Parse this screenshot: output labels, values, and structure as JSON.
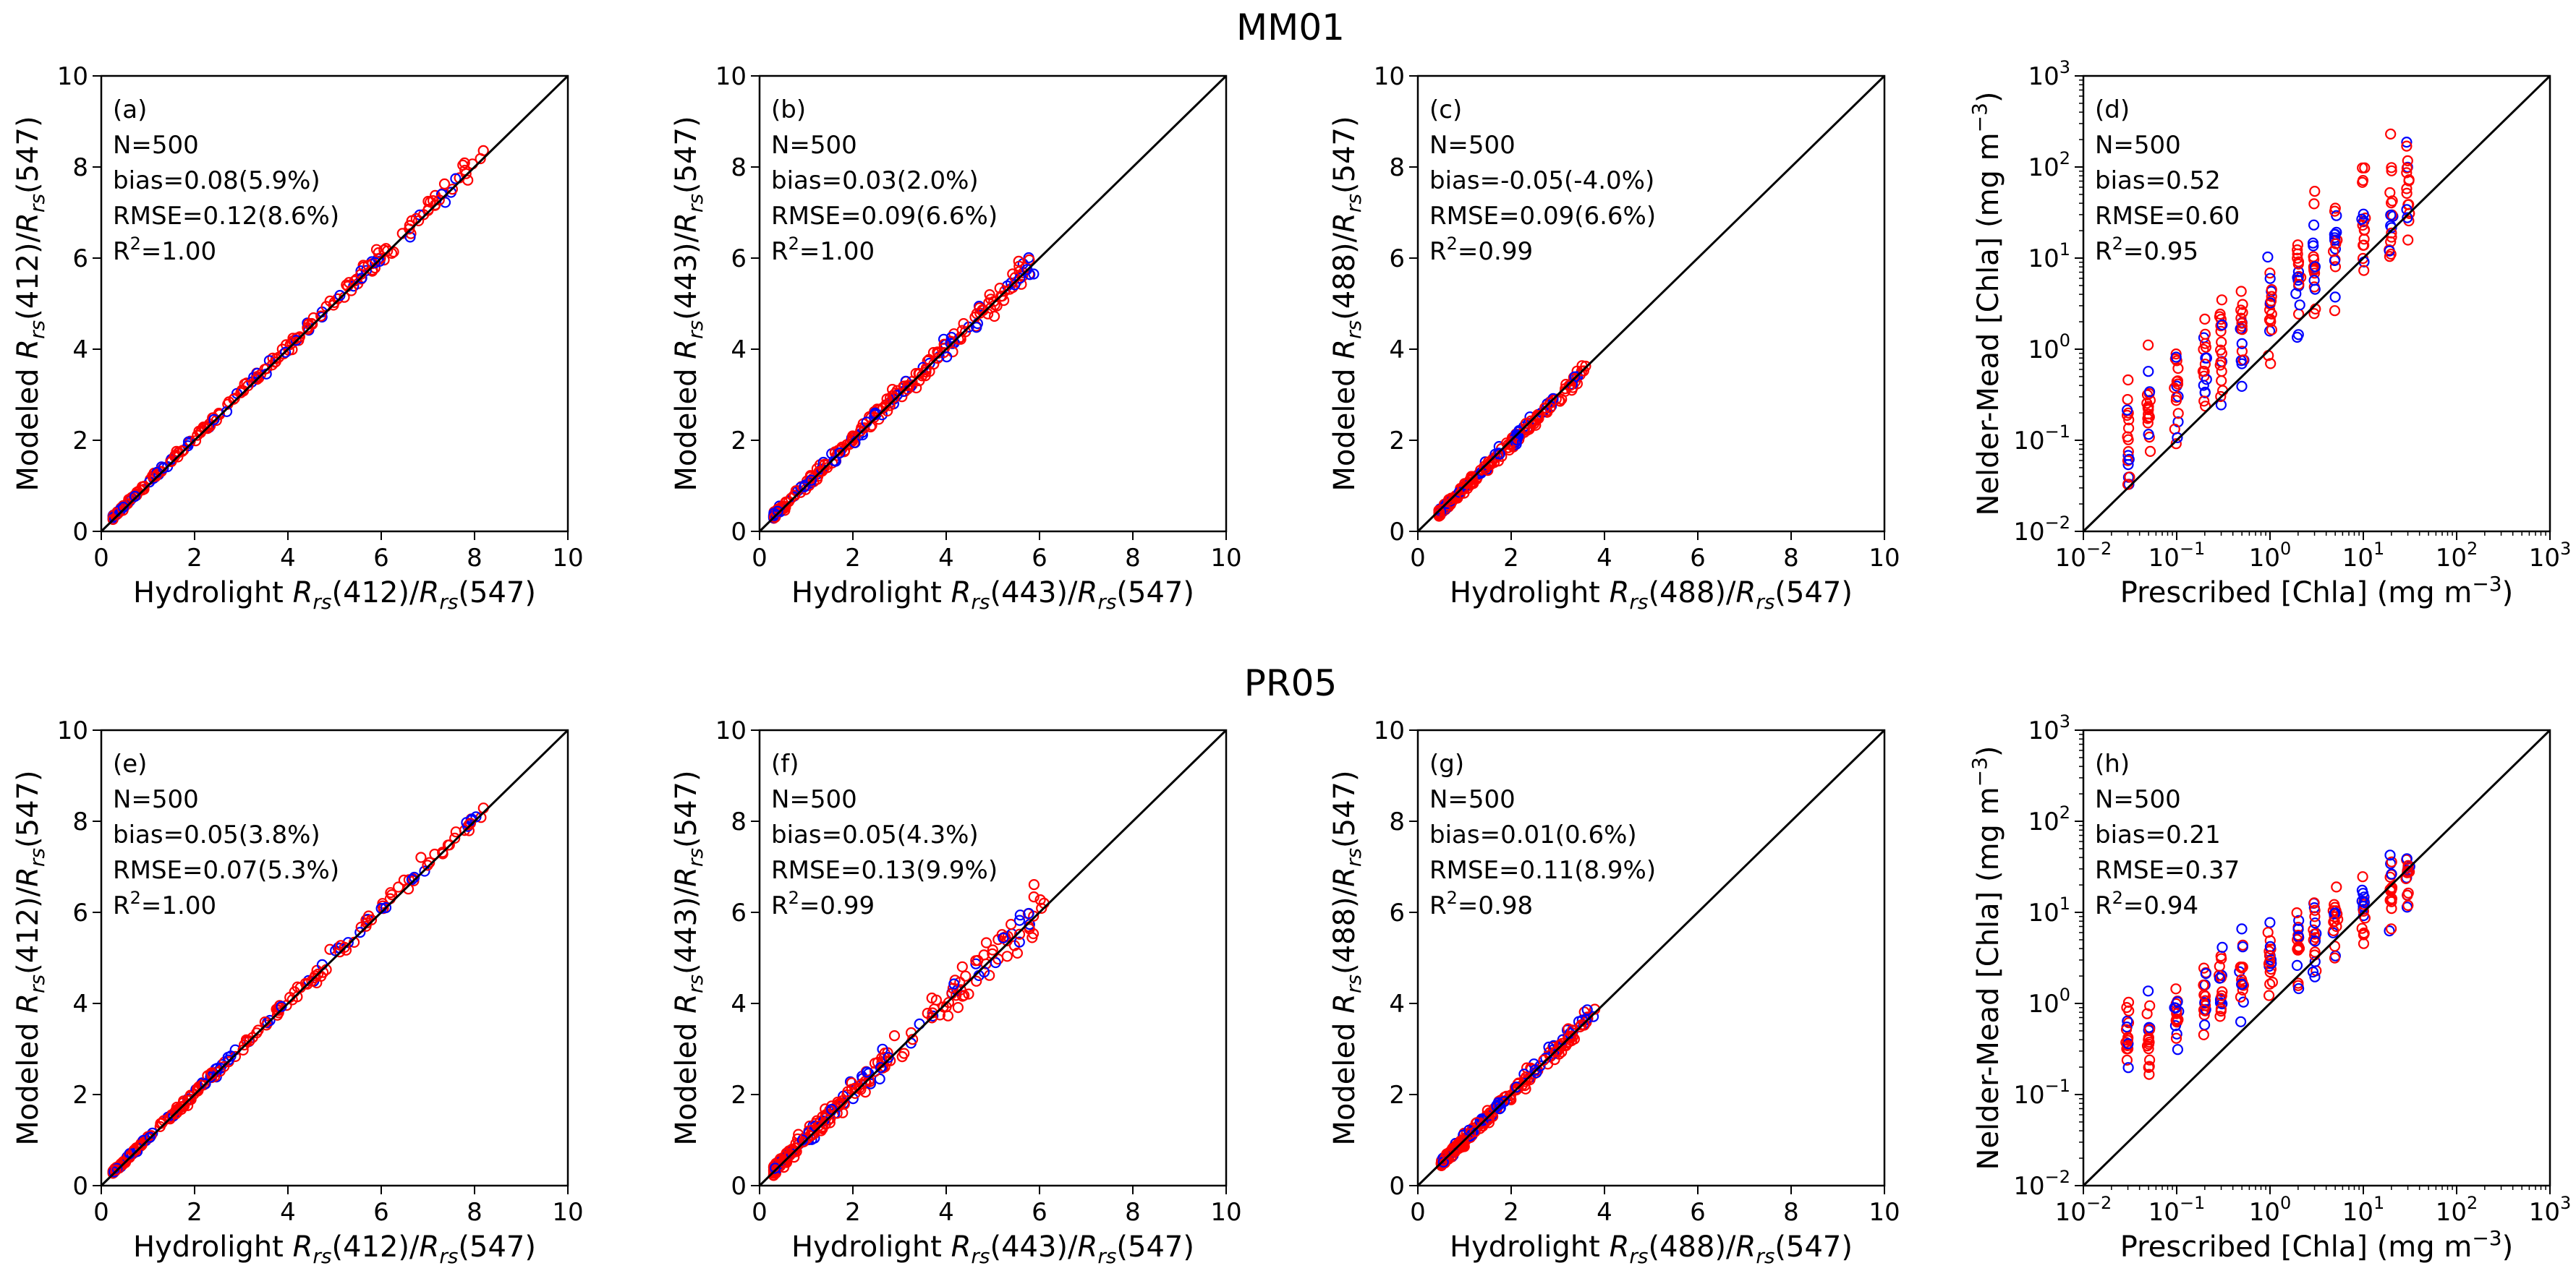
{
  "figure": {
    "group_titles": [
      "MM01",
      "PR05"
    ]
  },
  "colors": {
    "series_a": "#0000ff",
    "series_b": "#ff0000",
    "line": "#000000"
  },
  "chart_data": [
    {
      "id": "a",
      "type": "scatter",
      "scale": "linear",
      "xlim": [
        0,
        10
      ],
      "ylim": [
        0,
        10
      ],
      "xticks": [
        "0",
        "2",
        "4",
        "6",
        "8",
        "10"
      ],
      "yticks": [
        "0",
        "2",
        "4",
        "6",
        "8",
        "10"
      ],
      "xlabel_pre": "Hydrolight ",
      "xlabel_mid": "(412)/",
      "xlabel_post": "(547)",
      "ylabel_pre": "Modeled ",
      "ylabel_mid": "(412)/",
      "ylabel_post": "(547)",
      "sym": "R",
      "sub": "rs",
      "annotation": {
        "panel": "(a)",
        "n": "N=500",
        "bias": "bias=0.08(5.9%)",
        "rmse": "RMSE=0.12(8.6%)",
        "r2_pre": "R",
        "r2_sup": "2",
        "r2_post": "=1.00"
      },
      "spread": 0.05,
      "offset": 0.06,
      "xmin": 0.25,
      "xmax": 8.2,
      "curve": 0
    },
    {
      "id": "b",
      "type": "scatter",
      "scale": "linear",
      "xlim": [
        0,
        10
      ],
      "ylim": [
        0,
        10
      ],
      "xticks": [
        "0",
        "2",
        "4",
        "6",
        "8",
        "10"
      ],
      "yticks": [
        "0",
        "2",
        "4",
        "6",
        "8",
        "10"
      ],
      "xlabel_pre": "Hydrolight ",
      "xlabel_mid": "(443)/",
      "xlabel_post": "(547)",
      "ylabel_pre": "Modeled ",
      "ylabel_mid": "(443)/",
      "ylabel_post": "(547)",
      "sym": "R",
      "sub": "rs",
      "annotation": {
        "panel": "(b)",
        "n": "N=500",
        "bias": "bias=0.03(2.0%)",
        "rmse": "RMSE=0.09(6.6%)",
        "r2_pre": "R",
        "r2_sup": "2",
        "r2_post": "=1.00"
      },
      "spread": 0.09,
      "offset": 0.03,
      "xmin": 0.3,
      "xmax": 6.0,
      "curve": 0
    },
    {
      "id": "c",
      "type": "scatter",
      "scale": "linear",
      "xlim": [
        0,
        10
      ],
      "ylim": [
        0,
        10
      ],
      "xticks": [
        "0",
        "2",
        "4",
        "6",
        "8",
        "10"
      ],
      "yticks": [
        "0",
        "2",
        "4",
        "6",
        "8",
        "10"
      ],
      "xlabel_pre": "Hydrolight ",
      "xlabel_mid": "(488)/",
      "xlabel_post": "(547)",
      "ylabel_pre": "Modeled ",
      "ylabel_mid": "(488)/",
      "ylabel_post": "(547)",
      "sym": "R",
      "sub": "rs",
      "annotation": {
        "panel": "(c)",
        "n": "N=500",
        "bias": "bias=-0.05(-4.0%)",
        "rmse": "RMSE=0.09(6.6%)",
        "r2_pre": "R",
        "r2_sup": "2",
        "r2_post": "=0.99"
      },
      "spread": 0.07,
      "offset": -0.05,
      "xmin": 0.45,
      "xmax": 3.6,
      "curve": 0
    },
    {
      "id": "d",
      "type": "scatter",
      "scale": "log",
      "xlim": [
        0.01,
        1000
      ],
      "ylim": [
        0.01,
        1000
      ],
      "xticks": [
        "10^-2",
        "10^-1",
        "10^0",
        "10^1",
        "10^2",
        "10^3"
      ],
      "yticks": [
        "10^-2",
        "10^-1",
        "10^0",
        "10^1",
        "10^2",
        "10^3"
      ],
      "xlabel_pre": "Prescribed [Chla] (mg m",
      "xlabel_sup": "−3",
      "xlabel_post": ")",
      "ylabel_pre": "Nelder-Mead [Chla] (mg m",
      "ylabel_sup": "−3",
      "ylabel_post": ")",
      "annotation": {
        "panel": "(d)",
        "n": "N=500",
        "bias": "bias=0.52",
        "rmse": "RMSE=0.60",
        "r2_pre": "R",
        "r2_sup": "2",
        "r2_post": "=0.95"
      },
      "chla_levels": [
        0.03,
        0.05,
        0.1,
        0.2,
        0.3,
        0.5,
        1,
        2,
        3,
        5,
        10,
        20,
        30
      ],
      "log_gain": 0.6,
      "log_spread": 0.3,
      "slope": 1.05
    },
    {
      "id": "e",
      "type": "scatter",
      "scale": "linear",
      "xlim": [
        0,
        10
      ],
      "ylim": [
        0,
        10
      ],
      "xticks": [
        "0",
        "2",
        "4",
        "6",
        "8",
        "10"
      ],
      "yticks": [
        "0",
        "2",
        "4",
        "6",
        "8",
        "10"
      ],
      "xlabel_pre": "Hydrolight ",
      "xlabel_mid": "(412)/",
      "xlabel_post": "(547)",
      "ylabel_pre": "Modeled ",
      "ylabel_mid": "(412)/",
      "ylabel_post": "(547)",
      "sym": "R",
      "sub": "rs",
      "annotation": {
        "panel": "(e)",
        "n": "N=500",
        "bias": "bias=0.05(3.8%)",
        "rmse": "RMSE=0.07(5.3%)",
        "r2_pre": "R",
        "r2_sup": "2",
        "r2_post": "=1.00"
      },
      "spread": 0.05,
      "offset": 0.04,
      "xmin": 0.25,
      "xmax": 8.2,
      "curve": 0
    },
    {
      "id": "f",
      "type": "scatter",
      "scale": "linear",
      "xlim": [
        0,
        10
      ],
      "ylim": [
        0,
        10
      ],
      "xticks": [
        "0",
        "2",
        "4",
        "6",
        "8",
        "10"
      ],
      "yticks": [
        "0",
        "2",
        "4",
        "6",
        "8",
        "10"
      ],
      "xlabel_pre": "Hydrolight ",
      "xlabel_mid": "(443)/",
      "xlabel_post": "(547)",
      "ylabel_pre": "Modeled ",
      "ylabel_mid": "(443)/",
      "ylabel_post": "(547)",
      "sym": "R",
      "sub": "rs",
      "annotation": {
        "panel": "(f)",
        "n": "N=500",
        "bias": "bias=0.05(4.3%)",
        "rmse": "RMSE=0.13(9.9%)",
        "r2_pre": "R",
        "r2_sup": "2",
        "r2_post": "=0.99"
      },
      "spread": 0.14,
      "offset": 0.05,
      "xmin": 0.3,
      "xmax": 6.1,
      "curve": 0.015
    },
    {
      "id": "g",
      "type": "scatter",
      "scale": "linear",
      "xlim": [
        0,
        10
      ],
      "ylim": [
        0,
        10
      ],
      "xticks": [
        "0",
        "2",
        "4",
        "6",
        "8",
        "10"
      ],
      "yticks": [
        "0",
        "2",
        "4",
        "6",
        "8",
        "10"
      ],
      "xlabel_pre": "Hydrolight ",
      "xlabel_mid": "(488)/",
      "xlabel_post": "(547)",
      "ylabel_pre": "Modeled ",
      "ylabel_mid": "(488)/",
      "ylabel_post": "(547)",
      "sym": "R",
      "sub": "rs",
      "annotation": {
        "panel": "(g)",
        "n": "N=500",
        "bias": "bias=0.01(0.6%)",
        "rmse": "RMSE=0.11(8.9%)",
        "r2_pre": "R",
        "r2_sup": "2",
        "r2_post": "=0.98"
      },
      "spread": 0.09,
      "offset": 0.01,
      "xmin": 0.5,
      "xmax": 3.8,
      "curve": 0.02
    },
    {
      "id": "h",
      "type": "scatter",
      "scale": "log",
      "xlim": [
        0.01,
        1000
      ],
      "ylim": [
        0.01,
        1000
      ],
      "xticks": [
        "10^-2",
        "10^-1",
        "10^0",
        "10^1",
        "10^2",
        "10^3"
      ],
      "yticks": [
        "10^-2",
        "10^-1",
        "10^0",
        "10^1",
        "10^2",
        "10^3"
      ],
      "xlabel_pre": "Prescribed [Chla] (mg m",
      "xlabel_sup": "−3",
      "xlabel_post": ")",
      "ylabel_pre": "Nelder-Mead [Chla] (mg m",
      "ylabel_sup": "−3",
      "ylabel_post": ")",
      "annotation": {
        "panel": "(h)",
        "n": "N=500",
        "bias": "bias=0.21",
        "rmse": "RMSE=0.37",
        "r2_pre": "R",
        "r2_sup": "2",
        "r2_post": "=0.94"
      },
      "chla_levels": [
        0.03,
        0.05,
        0.1,
        0.2,
        0.3,
        0.5,
        1,
        2,
        3,
        5,
        10,
        20,
        30
      ],
      "log_gain": 0.55,
      "log_spread": 0.2,
      "slope": 0.72
    }
  ]
}
